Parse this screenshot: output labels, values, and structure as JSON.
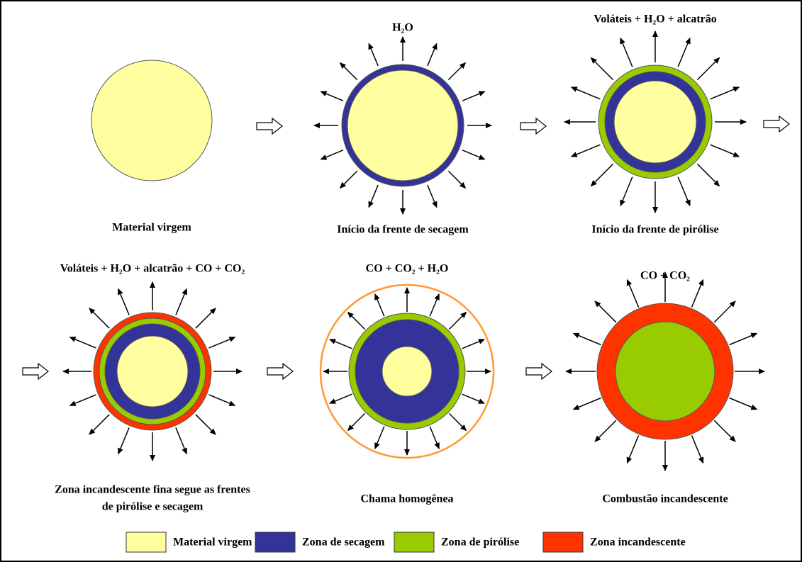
{
  "particles": [
    {
      "caption": [
        "Material virgem"
      ]
    },
    {
      "emission": "H₂O",
      "caption": [
        "Início da frente de secagem"
      ]
    },
    {
      "emission": "Voláteis + H₂O + alcatrão",
      "caption": [
        "Início da frente de pirólise"
      ]
    },
    {
      "emission": "Voláteis + H₂O + alcatrão + CO + CO₂",
      "caption": [
        "Zona incandescente fina segue as frentes",
        "de pirólise e secagem"
      ]
    },
    {
      "emission": "CO + CO₂ + H₂O",
      "caption": [
        "Chama homogênea"
      ]
    },
    {
      "emission": "CO + CO₂",
      "caption": [
        "Combustão incandescente"
      ]
    }
  ],
  "legend": [
    "Material virgem",
    "Zona de secagem",
    "Zona de pirólise",
    "Zona incandescente"
  ]
}
